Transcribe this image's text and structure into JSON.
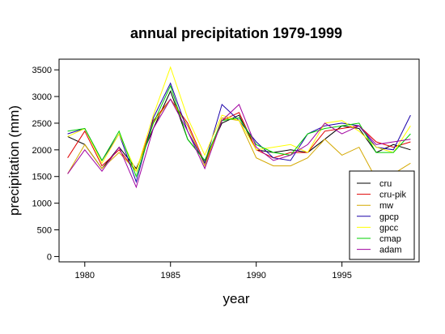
{
  "chart_data": {
    "type": "line",
    "title": "annual precipitation 1979-1999",
    "xlabel": "year",
    "ylabel": "precipitation (mm)",
    "xlim": [
      1978.5,
      1999.5
    ],
    "ylim": [
      -100,
      3700
    ],
    "xticks": [
      1980,
      1985,
      1990,
      1995
    ],
    "yticks": [
      0,
      500,
      1000,
      1500,
      2000,
      2500,
      3000,
      3500
    ],
    "grid": false,
    "legend_position": "bottom-right",
    "x": [
      1979,
      1980,
      1981,
      1982,
      1983,
      1984,
      1985,
      1986,
      1987,
      1988,
      1989,
      1990,
      1991,
      1992,
      1993,
      1994,
      1995,
      1996,
      1997,
      1998,
      1999
    ],
    "series": [
      {
        "name": "cru",
        "color": "#000000",
        "values": [
          2250,
          2100,
          1650,
          2050,
          1650,
          2400,
          3100,
          2200,
          1800,
          2500,
          2650,
          2000,
          1950,
          2000,
          1950,
          2200,
          2450,
          2400,
          1950,
          2100,
          2000
        ]
      },
      {
        "name": "cru-pik",
        "color": "#e00000",
        "values": [
          1850,
          2350,
          1700,
          2000,
          1600,
          2550,
          2950,
          2500,
          1750,
          2550,
          2700,
          2000,
          1850,
          1950,
          1950,
          2350,
          2400,
          2450,
          2150,
          2050,
          2150
        ]
      },
      {
        "name": "mw",
        "color": "#d4a800",
        "values": [
          1550,
          2100,
          1650,
          1950,
          1600,
          2500,
          2950,
          2450,
          1700,
          2600,
          2550,
          1850,
          1700,
          1700,
          1850,
          2200,
          1900,
          2050,
          1450,
          1550,
          1750
        ]
      },
      {
        "name": "gpcp",
        "color": "#1a00a8",
        "values": [
          2300,
          2400,
          1800,
          2300,
          1400,
          2600,
          3250,
          2350,
          1750,
          2850,
          2550,
          2150,
          1850,
          1800,
          2300,
          2450,
          2500,
          2450,
          2050,
          2000,
          2650
        ]
      },
      {
        "name": "gpcc",
        "color": "#ffff00",
        "values": [
          2250,
          2400,
          1750,
          2300,
          1600,
          2650,
          3550,
          2600,
          1900,
          2650,
          2550,
          2000,
          2050,
          2100,
          1950,
          2500,
          2550,
          2350,
          2050,
          1950,
          2450
        ]
      },
      {
        "name": "cmap",
        "color": "#00d000",
        "values": [
          2350,
          2400,
          1800,
          2350,
          1500,
          2500,
          3200,
          2200,
          1800,
          2550,
          2600,
          2100,
          1950,
          1900,
          2300,
          2400,
          2450,
          2500,
          1950,
          1950,
          2300
        ]
      },
      {
        "name": "adam",
        "color": "#a000a0",
        "values": [
          1550,
          2000,
          1600,
          2050,
          1300,
          2400,
          2950,
          2350,
          1650,
          2550,
          2850,
          2050,
          1800,
          1900,
          2100,
          2500,
          2300,
          2450,
          2100,
          2150,
          2200
        ]
      }
    ]
  }
}
